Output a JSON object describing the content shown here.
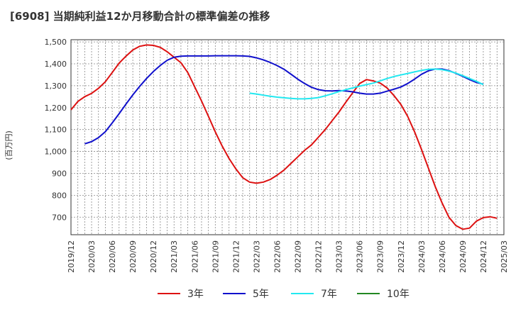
{
  "chart_data": {
    "type": "line",
    "title": "[6908]  当期純利益12か月移動合計の標準偏差の推移",
    "ylabel": "(百万円)",
    "xlabel": "",
    "ylim": [
      620,
      1510
    ],
    "yticks": [
      700,
      800,
      900,
      1000,
      1100,
      1200,
      1300,
      1400,
      1500
    ],
    "ytick_labels": [
      "700",
      "800",
      "900",
      "1,000",
      "1,100",
      "1,200",
      "1,300",
      "1,400",
      "1,500"
    ],
    "xticks": [
      "2019/12",
      "2020/03",
      "2020/06",
      "2020/09",
      "2020/12",
      "2021/03",
      "2021/06",
      "2021/09",
      "2021/12",
      "2022/03",
      "2022/06",
      "2022/09",
      "2022/12",
      "2023/03",
      "2023/06",
      "2023/09",
      "2023/12",
      "2024/03",
      "2024/06",
      "2024/09",
      "2024/12",
      "2025/03"
    ],
    "grid": true,
    "legend_position": "bottom",
    "series": [
      {
        "name": "3年",
        "color": "#dd1111",
        "points": [
          [
            "2019/12",
            1190
          ],
          [
            "2020/01",
            1228
          ],
          [
            "2020/02",
            1250
          ],
          [
            "2020/03",
            1265
          ],
          [
            "2020/04",
            1288
          ],
          [
            "2020/05",
            1318
          ],
          [
            "2020/06",
            1360
          ],
          [
            "2020/07",
            1403
          ],
          [
            "2020/08",
            1435
          ],
          [
            "2020/09",
            1463
          ],
          [
            "2020/10",
            1480
          ],
          [
            "2020/11",
            1486
          ],
          [
            "2020/12",
            1484
          ],
          [
            "2020/01b",
            1475
          ],
          [
            "2021/02",
            1455
          ],
          [
            "2021/03",
            1430
          ],
          [
            "2021/04",
            1405
          ],
          [
            "2021/05",
            1360
          ],
          [
            "2021/06",
            1295
          ],
          [
            "2021/07",
            1230
          ],
          [
            "2021/08",
            1160
          ],
          [
            "2021/09",
            1090
          ],
          [
            "2021/10",
            1025
          ],
          [
            "2021/11",
            968
          ],
          [
            "2021/12",
            920
          ],
          [
            "2022/01",
            880
          ],
          [
            "2022/02",
            860
          ],
          [
            "2022/03",
            855
          ],
          [
            "2022/04",
            860
          ],
          [
            "2022/05",
            872
          ],
          [
            "2022/06",
            892
          ],
          [
            "2022/07",
            915
          ],
          [
            "2022/08",
            945
          ],
          [
            "2022/09",
            975
          ],
          [
            "2022/10",
            1005
          ],
          [
            "2022/11",
            1030
          ],
          [
            "2022/12",
            1065
          ],
          [
            "2023/01",
            1100
          ],
          [
            "2023/02",
            1140
          ],
          [
            "2023/03",
            1180
          ],
          [
            "2023/04",
            1225
          ],
          [
            "2023/05",
            1268
          ],
          [
            "2023/06",
            1310
          ],
          [
            "2023/07",
            1328
          ],
          [
            "2023/08",
            1322
          ],
          [
            "2023/09",
            1312
          ],
          [
            "2023/10",
            1290
          ],
          [
            "2023/11",
            1255
          ],
          [
            "2023/12",
            1215
          ],
          [
            "2024/01",
            1160
          ],
          [
            "2024/02",
            1090
          ],
          [
            "2024/03",
            1010
          ],
          [
            "2024/04",
            925
          ],
          [
            "2024/05",
            840
          ],
          [
            "2024/06",
            765
          ],
          [
            "2024/07",
            700
          ],
          [
            "2024/08",
            662
          ],
          [
            "2024/09",
            645
          ],
          [
            "2024/10",
            650
          ],
          [
            "2024/11",
            682
          ],
          [
            "2024/12",
            698
          ],
          [
            "2025/01",
            702
          ],
          [
            "2025/02",
            695
          ]
        ]
      },
      {
        "name": "5年",
        "color": "#1010cc",
        "points": [
          [
            "2020/02",
            1035
          ],
          [
            "2020/03",
            1045
          ],
          [
            "2020/04",
            1063
          ],
          [
            "2020/05",
            1090
          ],
          [
            "2020/06",
            1130
          ],
          [
            "2020/07",
            1172
          ],
          [
            "2020/08",
            1216
          ],
          [
            "2020/09",
            1258
          ],
          [
            "2020/10",
            1297
          ],
          [
            "2020/11",
            1333
          ],
          [
            "2020/12",
            1365
          ],
          [
            "2021/01",
            1393
          ],
          [
            "2021/02",
            1416
          ],
          [
            "2021/03",
            1430
          ],
          [
            "2021/04",
            1435
          ],
          [
            "2021/05",
            1436
          ],
          [
            "2021/06",
            1436
          ],
          [
            "2021/07",
            1436
          ],
          [
            "2021/08",
            1436
          ],
          [
            "2021/09",
            1437
          ],
          [
            "2021/10",
            1437
          ],
          [
            "2021/11",
            1437
          ],
          [
            "2021/12",
            1437
          ],
          [
            "2022/01",
            1436
          ],
          [
            "2022/02",
            1434
          ],
          [
            "2022/03",
            1427
          ],
          [
            "2022/04",
            1418
          ],
          [
            "2022/05",
            1406
          ],
          [
            "2022/06",
            1392
          ],
          [
            "2022/07",
            1375
          ],
          [
            "2022/08",
            1353
          ],
          [
            "2022/09",
            1330
          ],
          [
            "2022/10",
            1310
          ],
          [
            "2022/11",
            1293
          ],
          [
            "2022/12",
            1282
          ],
          [
            "2023/01",
            1277
          ],
          [
            "2023/02",
            1276
          ],
          [
            "2023/03",
            1278
          ],
          [
            "2023/04",
            1276
          ],
          [
            "2023/05",
            1272
          ],
          [
            "2023/06",
            1266
          ],
          [
            "2023/07",
            1262
          ],
          [
            "2023/08",
            1262
          ],
          [
            "2023/09",
            1266
          ],
          [
            "2023/10",
            1275
          ],
          [
            "2023/11",
            1284
          ],
          [
            "2023/12",
            1294
          ],
          [
            "2024/01",
            1310
          ],
          [
            "2024/02",
            1330
          ],
          [
            "2024/03",
            1352
          ],
          [
            "2024/04",
            1368
          ],
          [
            "2024/05",
            1376
          ],
          [
            "2024/06",
            1376
          ],
          [
            "2024/07",
            1369
          ],
          [
            "2024/08",
            1357
          ],
          [
            "2024/09",
            1343
          ],
          [
            "2024/10",
            1328
          ],
          [
            "2024/11",
            1315
          ],
          [
            "2024/12",
            1307
          ]
        ]
      },
      {
        "name": "7年",
        "color": "#22e8f0",
        "points": [
          [
            "2022/02",
            1266
          ],
          [
            "2022/03",
            1262
          ],
          [
            "2022/04",
            1257
          ],
          [
            "2022/05",
            1252
          ],
          [
            "2022/06",
            1248
          ],
          [
            "2022/07",
            1245
          ],
          [
            "2022/08",
            1242
          ],
          [
            "2022/09",
            1240
          ],
          [
            "2022/10",
            1240
          ],
          [
            "2022/11",
            1242
          ],
          [
            "2022/12",
            1246
          ],
          [
            "2023/01",
            1254
          ],
          [
            "2023/02",
            1263
          ],
          [
            "2023/03",
            1273
          ],
          [
            "2023/04",
            1282
          ],
          [
            "2023/05",
            1290
          ],
          [
            "2023/06",
            1298
          ],
          [
            "2023/07",
            1305
          ],
          [
            "2023/08",
            1312
          ],
          [
            "2023/09",
            1322
          ],
          [
            "2023/10",
            1333
          ],
          [
            "2023/11",
            1342
          ],
          [
            "2023/12",
            1349
          ],
          [
            "2024/01",
            1356
          ],
          [
            "2024/02",
            1363
          ],
          [
            "2024/03",
            1370
          ],
          [
            "2024/04",
            1375
          ],
          [
            "2024/05",
            1376
          ],
          [
            "2024/06",
            1373
          ],
          [
            "2024/07",
            1367
          ],
          [
            "2024/08",
            1358
          ],
          [
            "2024/09",
            1346
          ],
          [
            "2024/10",
            1333
          ],
          [
            "2024/11",
            1320
          ],
          [
            "2024/12",
            1305
          ]
        ]
      },
      {
        "name": "10年",
        "color": "#228822",
        "points": []
      }
    ]
  }
}
